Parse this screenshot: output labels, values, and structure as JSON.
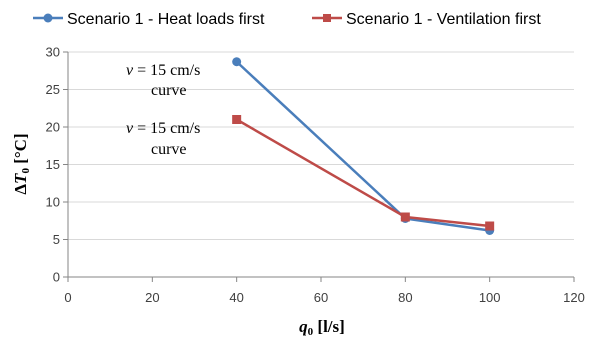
{
  "chart_data": {
    "type": "line",
    "xlabel_var": "q",
    "xlabel_sub": "0",
    "xlabel_unit": " [l/s]",
    "ylabel_prefix": "Δ",
    "ylabel_var": "T",
    "ylabel_sub": "0",
    "ylabel_unit": " [°C]",
    "xlim": [
      0,
      120
    ],
    "ylim": [
      0,
      30
    ],
    "xticks": [
      "0",
      "20",
      "40",
      "60",
      "80",
      "100",
      "120"
    ],
    "yticks": [
      "0",
      "5",
      "10",
      "15",
      "20",
      "25",
      "30"
    ],
    "grid": "horizontal",
    "legend_position": "top",
    "series": [
      {
        "name": "Scenario 1 - Heat loads first",
        "color": "#4a7ebb",
        "marker": "circle",
        "x": [
          40,
          80,
          100
        ],
        "y": [
          28.7,
          7.8,
          6.2
        ]
      },
      {
        "name": "Scenario 1 - Ventilation first",
        "color": "#be4b48",
        "marker": "square",
        "x": [
          40,
          80,
          100
        ],
        "y": [
          21.0,
          8.0,
          6.8
        ]
      }
    ],
    "annotations": [
      {
        "var": "v",
        "line1": " = 15 cm/s",
        "line2": "curve"
      },
      {
        "var": "v",
        "line1": " = 15 cm/s",
        "line2": "curve"
      }
    ]
  }
}
